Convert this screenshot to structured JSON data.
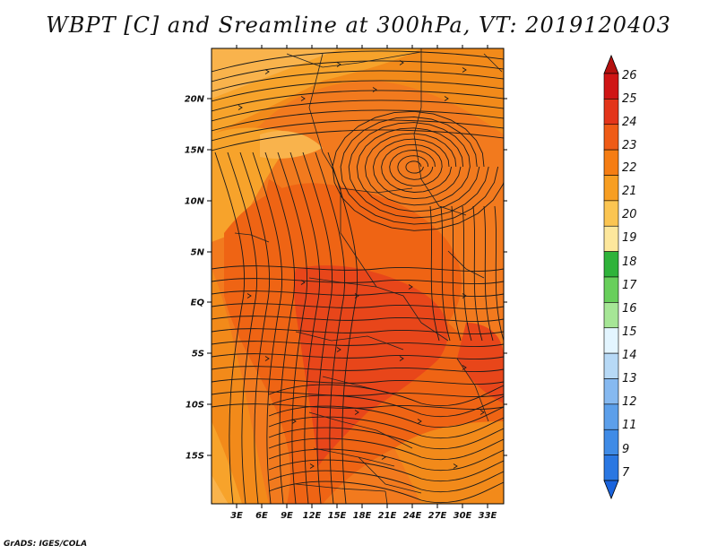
{
  "title": "WBPT [C] and Sreamline at 300hPa, VT: 2019120403",
  "footer": "GrADS: IGES/COLA",
  "map": {
    "x_ticks": [
      "3E",
      "6E",
      "9E",
      "12E",
      "15E",
      "18E",
      "21E",
      "24E",
      "27E",
      "30E",
      "33E"
    ],
    "y_ticks": [
      "20N",
      "15N",
      "10N",
      "5N",
      "EQ",
      "5S",
      "10S",
      "15S"
    ],
    "background_color": "#f27a1e",
    "field_colors": {
      "c20": "#f9b34c",
      "c21": "#f7a32b",
      "c22": "#f28a1a",
      "c23": "#ef6414",
      "c24": "#e8461a"
    }
  },
  "legend": {
    "levels": [
      "26",
      "25",
      "24",
      "23",
      "22",
      "21",
      "20",
      "19",
      "18",
      "17",
      "16",
      "15",
      "14",
      "13",
      "12",
      "11",
      "9",
      "7"
    ],
    "colors": [
      "#b4110f",
      "#cf1515",
      "#e3351a",
      "#ef5b16",
      "#f57d13",
      "#f79e22",
      "#fbc552",
      "#fde79c",
      "#2fb33a",
      "#68cf5b",
      "#a6e696",
      "#e3f5ff",
      "#b7d9f6",
      "#86b9f0",
      "#5c9fea",
      "#3f8be6",
      "#2a77e2",
      "#1a63dc"
    ]
  }
}
